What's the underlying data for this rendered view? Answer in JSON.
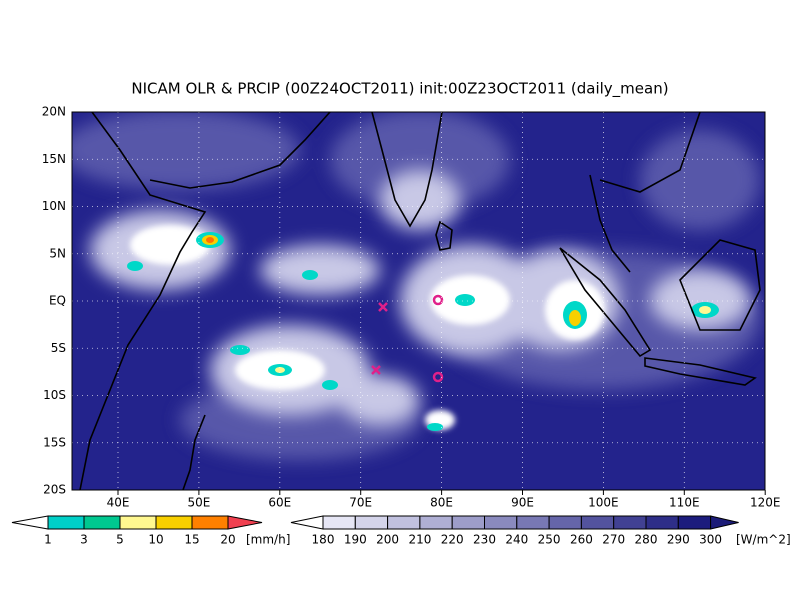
{
  "title": "NICAM OLR & PRCIP (00Z24OCT2011) init:00Z23OCT2011 (daily_mean)",
  "map": {
    "lon_labels": [
      "40E",
      "50E",
      "60E",
      "70E",
      "80E",
      "90E",
      "100E",
      "110E",
      "120E"
    ],
    "lat_labels": [
      "20N",
      "15N",
      "10N",
      "5N",
      "EQ",
      "5S",
      "10S",
      "15S",
      "20S"
    ]
  },
  "legend_precip": {
    "labels": [
      "1",
      "3",
      "5",
      "10",
      "15",
      "20"
    ],
    "unit": "[mm/h]"
  },
  "legend_olr": {
    "labels": [
      "180",
      "190",
      "200",
      "210",
      "220",
      "230",
      "240",
      "250",
      "260",
      "270",
      "280",
      "290",
      "300"
    ],
    "unit": "[W/m^2]"
  }
}
